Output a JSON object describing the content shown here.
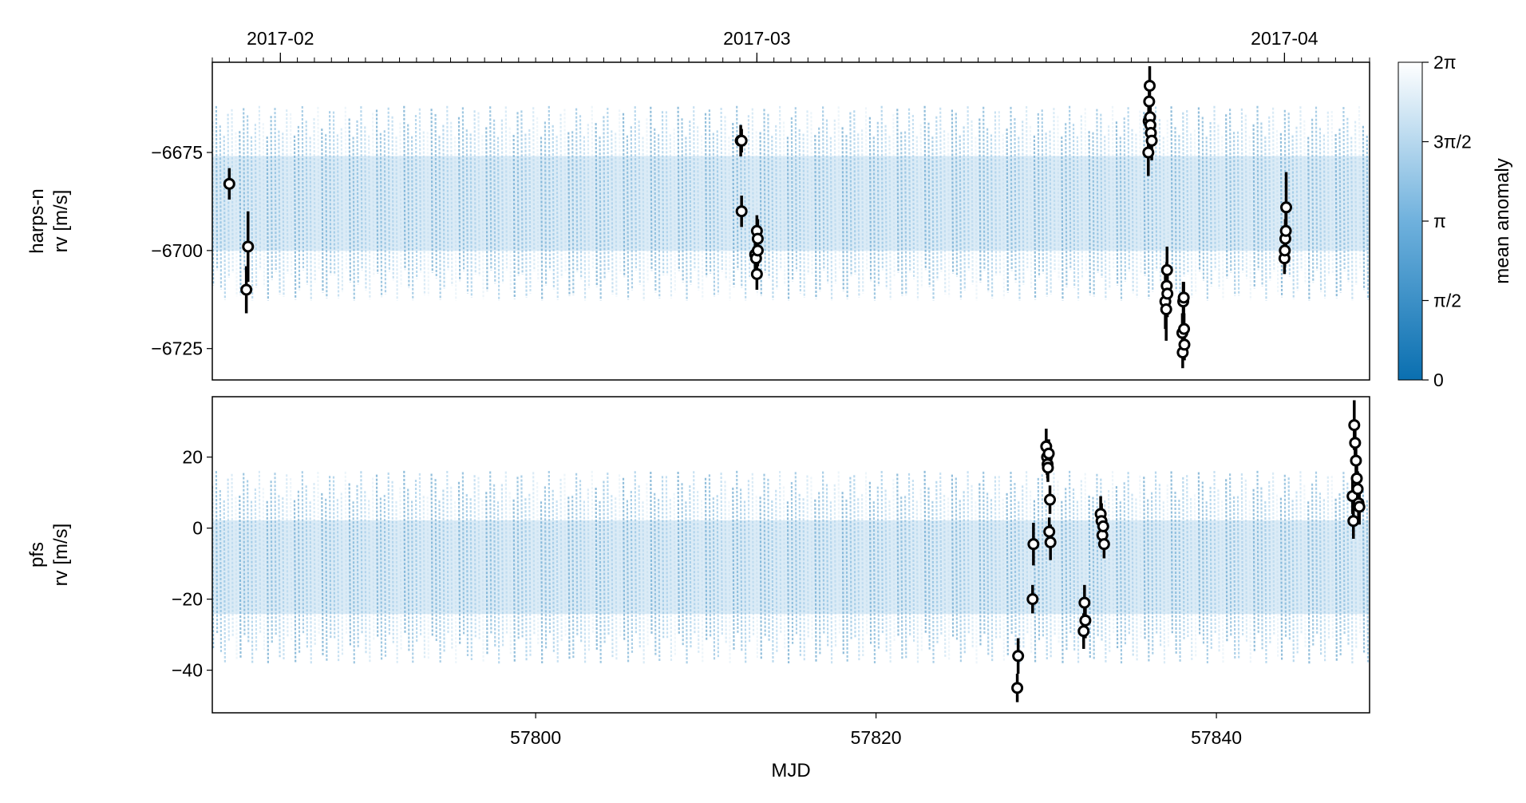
{
  "chart_data": {
    "type": "scatter",
    "description_colorbar": "mean anomaly",
    "colorbar": {
      "label": "mean anomaly",
      "range": [
        0,
        6.283185307
      ],
      "ticks": [
        "0",
        "π/2",
        "π",
        "3π/2",
        "2π"
      ],
      "colors": [
        "#0a6fb0",
        "#ffffff"
      ]
    },
    "top_axis": {
      "ticks": [
        {
          "mjd": 57785,
          "label": "2017-02"
        },
        {
          "mjd": 57813,
          "label": "2017-03"
        },
        {
          "mjd": 57844,
          "label": "2017-04"
        }
      ]
    },
    "x_axis": {
      "label": "MJD",
      "range": [
        57781.0,
        57849.0
      ],
      "ticks": [
        57800,
        57820,
        57840
      ],
      "tick_labels": [
        "57800",
        "57820",
        "57840"
      ]
    },
    "panels": [
      {
        "name": "harps-n",
        "ylabel_line1": "harps-n",
        "ylabel_line2": "rv [m/s]",
        "ylim": [
          -6733,
          -6652
        ],
        "yticks": [
          -6675,
          -6700,
          -6725
        ],
        "ytick_labels": [
          "−6675",
          "−6700",
          "−6725"
        ],
        "model_band": {
          "center": -6688,
          "half_amplitude": 22
        },
        "points": [
          {
            "x": 57782.0,
            "y": -6683,
            "err": 4
          },
          {
            "x": 57783.0,
            "y": -6710,
            "err": 6
          },
          {
            "x": 57783.1,
            "y": -6699,
            "err": 9
          },
          {
            "x": 57812.05,
            "y": -6672,
            "err": 4
          },
          {
            "x": 57812.1,
            "y": -6672,
            "err": 3
          },
          {
            "x": 57812.1,
            "y": -6690,
            "err": 4
          },
          {
            "x": 57812.9,
            "y": -6701,
            "err": 5
          },
          {
            "x": 57812.95,
            "y": -6702,
            "err": 4
          },
          {
            "x": 57813.0,
            "y": -6695,
            "err": 4
          },
          {
            "x": 57813.0,
            "y": -6706,
            "err": 4
          },
          {
            "x": 57813.05,
            "y": -6700,
            "err": 4
          },
          {
            "x": 57813.05,
            "y": -6697,
            "err": 5
          },
          {
            "x": 57836.0,
            "y": -6675,
            "err": 6
          },
          {
            "x": 57836.02,
            "y": -6667,
            "err": 5
          },
          {
            "x": 57836.05,
            "y": -6662,
            "err": 5
          },
          {
            "x": 57836.08,
            "y": -6658,
            "err": 5
          },
          {
            "x": 57836.1,
            "y": -6666,
            "err": 5
          },
          {
            "x": 57836.12,
            "y": -6668,
            "err": 5
          },
          {
            "x": 57836.15,
            "y": -6670,
            "err": 5
          },
          {
            "x": 57836.2,
            "y": -6672,
            "err": 5
          },
          {
            "x": 57837.0,
            "y": -6713,
            "err": 7
          },
          {
            "x": 57837.05,
            "y": -6715,
            "err": 8
          },
          {
            "x": 57837.08,
            "y": -6709,
            "err": 6
          },
          {
            "x": 57837.1,
            "y": -6705,
            "err": 6
          },
          {
            "x": 57837.12,
            "y": -6711,
            "err": 6
          },
          {
            "x": 57838.0,
            "y": -6721,
            "err": 5
          },
          {
            "x": 57838.02,
            "y": -6726,
            "err": 4
          },
          {
            "x": 57838.05,
            "y": -6713,
            "err": 5
          },
          {
            "x": 57838.08,
            "y": -6712,
            "err": 4
          },
          {
            "x": 57838.1,
            "y": -6720,
            "err": 4
          },
          {
            "x": 57838.12,
            "y": -6724,
            "err": 4
          },
          {
            "x": 57844.0,
            "y": -6702,
            "err": 4
          },
          {
            "x": 57844.02,
            "y": -6700,
            "err": 4
          },
          {
            "x": 57844.05,
            "y": -6697,
            "err": 5
          },
          {
            "x": 57844.08,
            "y": -6695,
            "err": 5
          },
          {
            "x": 57844.1,
            "y": -6689,
            "err": 9
          }
        ]
      },
      {
        "name": "pfs",
        "ylabel_line1": "pfs",
        "ylabel_line2": "rv [m/s]",
        "ylim": [
          -52,
          37
        ],
        "yticks": [
          20,
          0,
          -20,
          -40
        ],
        "ytick_labels": [
          "20",
          "0",
          "−20",
          "−40"
        ],
        "model_band": {
          "center": -11,
          "half_amplitude": 24
        },
        "points": [
          {
            "x": 57828.3,
            "y": -45,
            "err": 4
          },
          {
            "x": 57828.35,
            "y": -36,
            "err": 5
          },
          {
            "x": 57829.2,
            "y": -20,
            "err": 4
          },
          {
            "x": 57829.25,
            "y": -4.5,
            "err": 6
          },
          {
            "x": 57830.0,
            "y": 23,
            "err": 5
          },
          {
            "x": 57830.05,
            "y": 20,
            "err": 5
          },
          {
            "x": 57830.08,
            "y": 18,
            "err": 4
          },
          {
            "x": 57830.1,
            "y": 17,
            "err": 4
          },
          {
            "x": 57830.15,
            "y": 21,
            "err": 4
          },
          {
            "x": 57830.18,
            "y": -1,
            "err": 4
          },
          {
            "x": 57830.22,
            "y": 8,
            "err": 4
          },
          {
            "x": 57830.25,
            "y": -4,
            "err": 5
          },
          {
            "x": 57832.2,
            "y": -29,
            "err": 5
          },
          {
            "x": 57832.25,
            "y": -21,
            "err": 5
          },
          {
            "x": 57832.3,
            "y": -26,
            "err": 5
          },
          {
            "x": 57833.2,
            "y": 4,
            "err": 5
          },
          {
            "x": 57833.25,
            "y": 2,
            "err": 5
          },
          {
            "x": 57833.3,
            "y": -2,
            "err": 4
          },
          {
            "x": 57833.35,
            "y": 0.5,
            "err": 4
          },
          {
            "x": 57833.4,
            "y": -4.5,
            "err": 4
          },
          {
            "x": 57848.0,
            "y": 9,
            "err": 5
          },
          {
            "x": 57848.05,
            "y": 2,
            "err": 5
          },
          {
            "x": 57848.1,
            "y": 29,
            "err": 7
          },
          {
            "x": 57848.15,
            "y": 24,
            "err": 6
          },
          {
            "x": 57848.2,
            "y": 19,
            "err": 5
          },
          {
            "x": 57848.25,
            "y": 14,
            "err": 5
          },
          {
            "x": 57848.3,
            "y": 11,
            "err": 5
          },
          {
            "x": 57848.35,
            "y": 7,
            "err": 5
          },
          {
            "x": 57848.4,
            "y": 6,
            "err": 5
          }
        ]
      }
    ]
  }
}
